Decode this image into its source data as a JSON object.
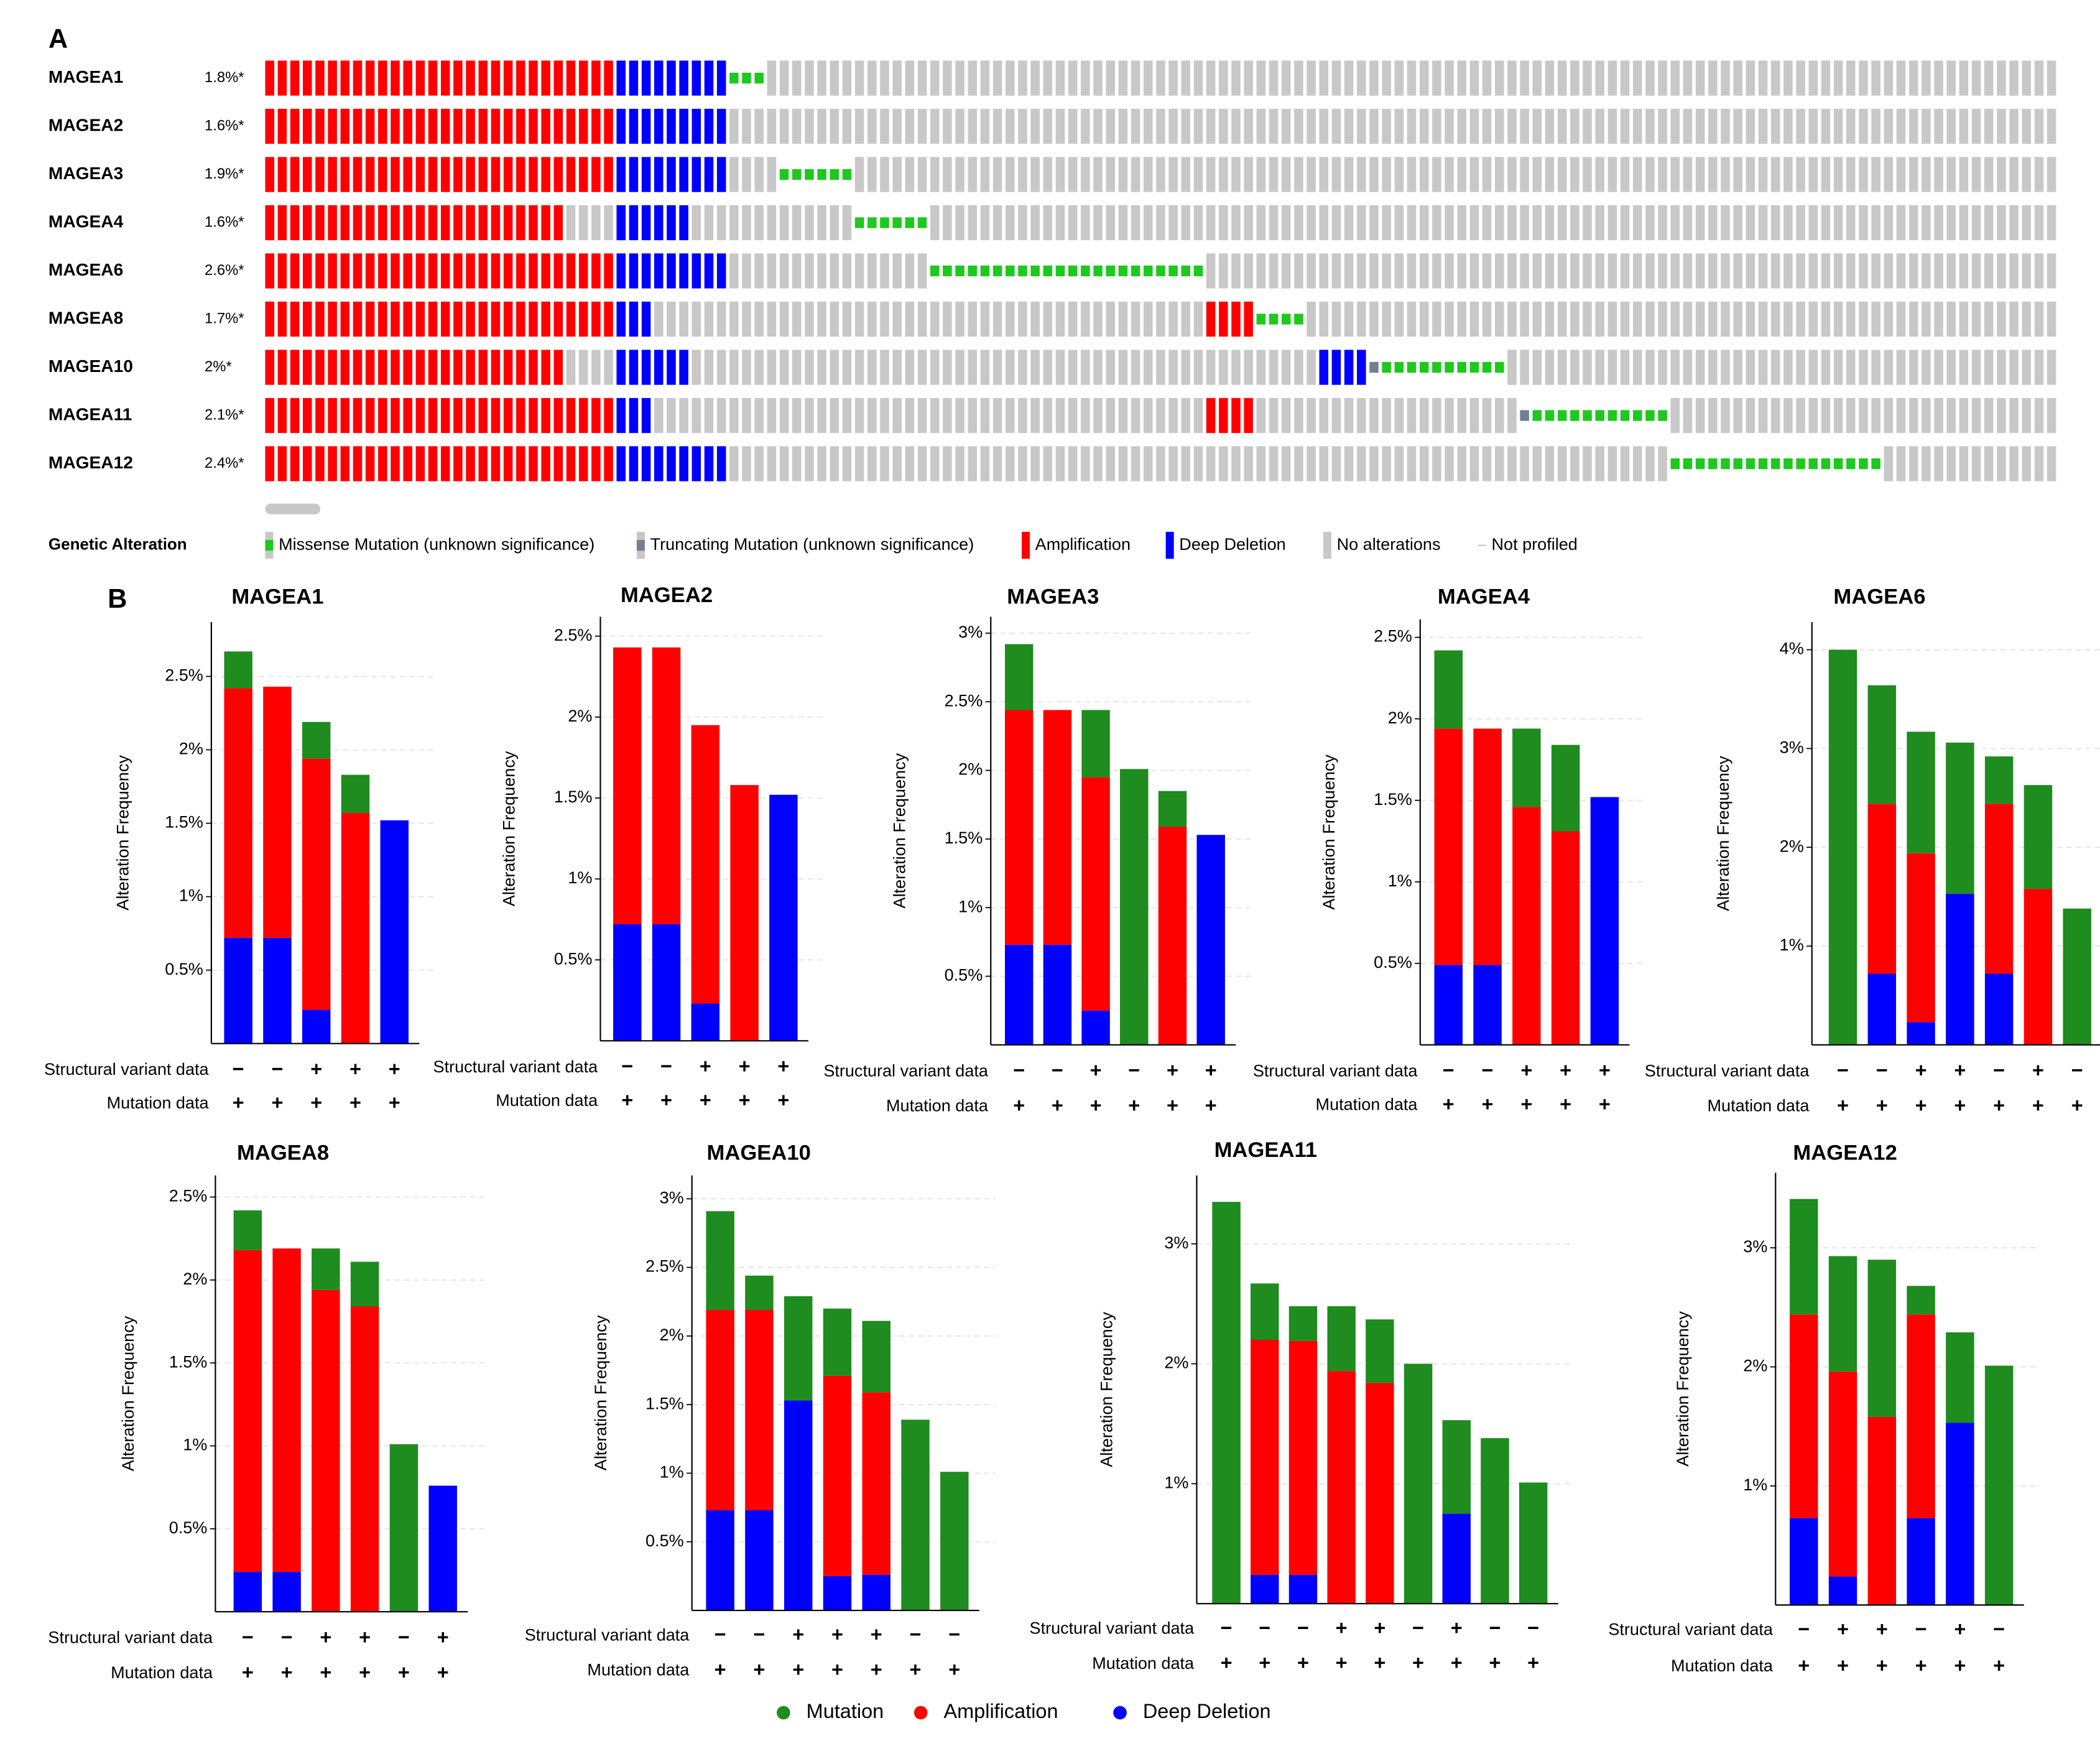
{
  "panel_labels": [
    "A",
    "B"
  ],
  "legend": {
    "series": [
      {
        "name": "Mutation",
        "color": "#1e8c1e"
      },
      {
        "name": "Amplification",
        "color": "#ff0000"
      },
      {
        "name": "Deep Deletion",
        "color": "#0000ff"
      }
    ]
  },
  "chart_data": [
    {
      "type": "oncoprint",
      "genes": [
        "MAGEA1",
        "MAGEA2",
        "MAGEA3",
        "MAGEA4",
        "MAGEA6",
        "MAGEA8",
        "MAGEA10",
        "MAGEA11",
        "MAGEA12"
      ],
      "percentages": [
        "1.8%*",
        "1.6%*",
        "1.9%*",
        "1.6%*",
        "2.6%*",
        "1.7%*",
        "2%*",
        "2.1%*",
        "2.4%*"
      ],
      "rows": [
        [
          [
            2,
            28
          ],
          [
            3,
            9
          ],
          [
            0,
            3
          ],
          [
            4,
            103
          ]
        ],
        [
          [
            2,
            28
          ],
          [
            3,
            9
          ],
          [
            4,
            106
          ]
        ],
        [
          [
            2,
            28
          ],
          [
            3,
            9
          ],
          [
            4,
            4
          ],
          [
            0,
            6
          ],
          [
            4,
            96
          ]
        ],
        [
          [
            2,
            24
          ],
          [
            4,
            4
          ],
          [
            3,
            6
          ],
          [
            4,
            13
          ],
          [
            0,
            6
          ],
          [
            4,
            90
          ]
        ],
        [
          [
            2,
            28
          ],
          [
            3,
            9
          ],
          [
            4,
            16
          ],
          [
            0,
            22
          ],
          [
            4,
            68
          ]
        ],
        [
          [
            2,
            28
          ],
          [
            3,
            3
          ],
          [
            4,
            44
          ],
          [
            2,
            4
          ],
          [
            0,
            4
          ],
          [
            4,
            60
          ]
        ],
        [
          [
            2,
            24
          ],
          [
            4,
            4
          ],
          [
            3,
            6
          ],
          [
            4,
            50
          ],
          [
            3,
            4
          ],
          [
            1,
            1
          ],
          [
            0,
            10
          ],
          [
            4,
            44
          ]
        ],
        [
          [
            2,
            28
          ],
          [
            3,
            3
          ],
          [
            4,
            44
          ],
          [
            2,
            4
          ],
          [
            4,
            21
          ],
          [
            1,
            1
          ],
          [
            0,
            11
          ],
          [
            4,
            31
          ]
        ],
        [
          [
            2,
            28
          ],
          [
            3,
            9
          ],
          [
            4,
            75
          ],
          [
            0,
            17
          ],
          [
            4,
            14
          ]
        ]
      ],
      "legend_title": "Genetic Alteration",
      "legend": [
        "Missense Mutation (unknown significance)",
        "Truncating Mutation (unknown significance)",
        "Amplification",
        "Deep Deletion",
        "No alterations",
        "Not profiled"
      ],
      "colors": [
        "#1ec81e",
        "#708090",
        "#ff0000",
        "#0000ff",
        "#c8c8c8",
        "#c8c8c8"
      ]
    },
    {
      "type": "bar",
      "stacked": true,
      "title": "MAGEA1",
      "ylabel": "Alteration Frequency",
      "ylim": [
        0,
        2.87
      ],
      "yticks": [
        {
          "value": 0.5,
          "label": "0.5%"
        },
        {
          "value": 1,
          "label": "1%"
        },
        {
          "value": 1.5,
          "label": "1.5%"
        },
        {
          "value": 2,
          "label": "2%"
        },
        {
          "value": 2.5,
          "label": "2.5%"
        }
      ],
      "grid": true,
      "series": [
        {
          "values": [
            0.25,
            0,
            0.25,
            0.26,
            0
          ]
        },
        {
          "values": [
            1.7,
            1.71,
            1.71,
            1.57,
            0
          ]
        },
        {
          "values": [
            0.72,
            0.72,
            0.23,
            0,
            1.52
          ]
        }
      ],
      "row_labels": [
        "Structural variant data",
        "Mutation data"
      ],
      "structural_variant": [
        "−",
        "−",
        "+",
        "+",
        "+"
      ],
      "mutation": [
        "+",
        "+",
        "+",
        "+",
        "+"
      ]
    },
    {
      "type": "bar",
      "stacked": true,
      "title": "MAGEA2",
      "ylabel": "Alteration Frequency",
      "ylim": [
        0,
        2.62
      ],
      "yticks": [
        {
          "value": 0.5,
          "label": "0.5%"
        },
        {
          "value": 1,
          "label": "1%"
        },
        {
          "value": 1.5,
          "label": "1.5%"
        },
        {
          "value": 2,
          "label": "2%"
        },
        {
          "value": 2.5,
          "label": "2.5%"
        }
      ],
      "grid": true,
      "series": [
        {
          "values": [
            0,
            0,
            0,
            0,
            0
          ]
        },
        {
          "values": [
            1.71,
            1.71,
            1.72,
            1.58,
            0
          ]
        },
        {
          "values": [
            0.72,
            0.72,
            0.23,
            0,
            1.52
          ]
        }
      ],
      "row_labels": [
        "Structural variant data",
        "Mutation data"
      ],
      "structural_variant": [
        "−",
        "−",
        "+",
        "+",
        "+"
      ],
      "mutation": [
        "+",
        "+",
        "+",
        "+",
        "+"
      ]
    },
    {
      "type": "bar",
      "stacked": true,
      "title": "MAGEA3",
      "ylabel": "Alteration Frequency",
      "ylim": [
        0,
        3.12
      ],
      "yticks": [
        {
          "value": 0.5,
          "label": "0.5%"
        },
        {
          "value": 1,
          "label": "1%"
        },
        {
          "value": 1.5,
          "label": "1.5%"
        },
        {
          "value": 2,
          "label": "2%"
        },
        {
          "value": 2.5,
          "label": "2.5%"
        },
        {
          "value": 3,
          "label": "3%"
        }
      ],
      "grid": true,
      "series": [
        {
          "values": [
            0.48,
            0,
            0.49,
            2.01,
            0.26,
            0
          ]
        },
        {
          "values": [
            1.71,
            1.71,
            1.7,
            0,
            1.59,
            0
          ]
        },
        {
          "values": [
            0.73,
            0.73,
            0.25,
            0,
            0,
            1.53
          ]
        }
      ],
      "row_labels": [
        "Structural variant data",
        "Mutation data"
      ],
      "structural_variant": [
        "−",
        "−",
        "+",
        "−",
        "+",
        "+"
      ],
      "mutation": [
        "+",
        "+",
        "+",
        "+",
        "+",
        "+"
      ]
    },
    {
      "type": "bar",
      "stacked": true,
      "title": "MAGEA4",
      "ylabel": "Alteration Frequency",
      "ylim": [
        0,
        2.61
      ],
      "yticks": [
        {
          "value": 0.5,
          "label": "0.5%"
        },
        {
          "value": 1,
          "label": "1%"
        },
        {
          "value": 1.5,
          "label": "1.5%"
        },
        {
          "value": 2,
          "label": "2%"
        },
        {
          "value": 2.5,
          "label": "2.5%"
        }
      ],
      "grid": true,
      "series": [
        {
          "values": [
            0.48,
            0,
            0.48,
            0.53,
            0
          ]
        },
        {
          "values": [
            1.45,
            1.45,
            1.46,
            1.31,
            0
          ]
        },
        {
          "values": [
            0.49,
            0.49,
            0,
            0,
            1.52
          ]
        }
      ],
      "row_labels": [
        "Structural variant data",
        "Mutation data"
      ],
      "structural_variant": [
        "−",
        "−",
        "+",
        "+",
        "+"
      ],
      "mutation": [
        "+",
        "+",
        "+",
        "+",
        "+"
      ]
    },
    {
      "type": "bar",
      "stacked": true,
      "title": "MAGEA6",
      "ylabel": "Alteration Frequency",
      "ylim": [
        0,
        4.28
      ],
      "yticks": [
        {
          "value": 1,
          "label": "1%"
        },
        {
          "value": 2,
          "label": "2%"
        },
        {
          "value": 3,
          "label": "3%"
        },
        {
          "value": 4,
          "label": "4%"
        }
      ],
      "grid": true,
      "series": [
        {
          "values": [
            4.0,
            1.2,
            1.23,
            1.53,
            0.48,
            1.05,
            1.38
          ]
        },
        {
          "values": [
            0,
            1.72,
            1.71,
            0,
            1.72,
            1.58,
            0
          ]
        },
        {
          "values": [
            0,
            0.72,
            0.23,
            1.53,
            0.72,
            0,
            0
          ]
        }
      ],
      "row_labels": [
        "Structural variant data",
        "Mutation data"
      ],
      "structural_variant": [
        "−",
        "−",
        "+",
        "+",
        "−",
        "+",
        "−"
      ],
      "mutation": [
        "+",
        "+",
        "+",
        "+",
        "+",
        "+",
        "+"
      ]
    },
    {
      "type": "bar",
      "stacked": true,
      "title": "MAGEA8",
      "ylabel": "Alteration Frequency",
      "ylim": [
        0,
        2.63
      ],
      "yticks": [
        {
          "value": 0.5,
          "label": "0.5%"
        },
        {
          "value": 1,
          "label": "1%"
        },
        {
          "value": 1.5,
          "label": "1.5%"
        },
        {
          "value": 2,
          "label": "2%"
        },
        {
          "value": 2.5,
          "label": "2.5%"
        }
      ],
      "grid": true,
      "series": [
        {
          "values": [
            0.24,
            0,
            0.25,
            0.27,
            1.01,
            0
          ]
        },
        {
          "values": [
            1.94,
            1.95,
            1.94,
            1.84,
            0,
            0
          ]
        },
        {
          "values": [
            0.24,
            0.24,
            0,
            0,
            0,
            0.76
          ]
        }
      ],
      "row_labels": [
        "Structural variant data",
        "Mutation data"
      ],
      "structural_variant": [
        "−",
        "−",
        "+",
        "+",
        "−",
        "+"
      ],
      "mutation": [
        "+",
        "+",
        "+",
        "+",
        "+",
        "+"
      ]
    },
    {
      "type": "bar",
      "stacked": true,
      "title": "MAGEA10",
      "ylabel": "Alteration Frequency",
      "ylim": [
        0,
        3.17
      ],
      "yticks": [
        {
          "value": 0.5,
          "label": "0.5%"
        },
        {
          "value": 1,
          "label": "1%"
        },
        {
          "value": 1.5,
          "label": "1.5%"
        },
        {
          "value": 2,
          "label": "2%"
        },
        {
          "value": 2.5,
          "label": "2.5%"
        },
        {
          "value": 3,
          "label": "3%"
        }
      ],
      "grid": true,
      "series": [
        {
          "values": [
            0.72,
            0.25,
            0.76,
            0.49,
            0.52,
            1.39,
            1.01
          ]
        },
        {
          "values": [
            1.46,
            1.46,
            0,
            1.46,
            1.33,
            0,
            0
          ]
        },
        {
          "values": [
            0.73,
            0.73,
            1.53,
            0.25,
            0.26,
            0,
            0
          ]
        }
      ],
      "row_labels": [
        "Structural variant data",
        "Mutation data"
      ],
      "structural_variant": [
        "−",
        "−",
        "+",
        "+",
        "+",
        "−",
        "−"
      ],
      "mutation": [
        "+",
        "+",
        "+",
        "+",
        "+",
        "+",
        "+"
      ]
    },
    {
      "type": "bar",
      "stacked": true,
      "title": "MAGEA11",
      "ylabel": "Alteration Frequency",
      "ylim": [
        0,
        3.57
      ],
      "yticks": [
        {
          "value": 1,
          "label": "1%"
        },
        {
          "value": 2,
          "label": "2%"
        },
        {
          "value": 3,
          "label": "3%"
        }
      ],
      "grid": true,
      "series": [
        {
          "values": [
            3.35,
            0.47,
            0.29,
            0.54,
            0.53,
            2.0,
            0.78,
            1.38,
            1.01
          ]
        },
        {
          "values": [
            0,
            1.96,
            1.95,
            1.94,
            1.84,
            0,
            0,
            0,
            0
          ]
        },
        {
          "values": [
            0,
            0.24,
            0.24,
            0,
            0,
            0,
            0.75,
            0,
            0
          ]
        }
      ],
      "row_labels": [
        "Structural variant data",
        "Mutation data"
      ],
      "structural_variant": [
        "−",
        "−",
        "−",
        "+",
        "+",
        "−",
        "+",
        "−",
        "−"
      ],
      "mutation": [
        "+",
        "+",
        "+",
        "+",
        "+",
        "+",
        "+",
        "+",
        "+"
      ]
    },
    {
      "type": "bar",
      "stacked": true,
      "title": "MAGEA12",
      "ylabel": "Alteration Frequency",
      "ylim": [
        0,
        3.63
      ],
      "yticks": [
        {
          "value": 1,
          "label": "1%"
        },
        {
          "value": 2,
          "label": "2%"
        },
        {
          "value": 3,
          "label": "3%"
        }
      ],
      "grid": true,
      "series": [
        {
          "values": [
            0.97,
            0.97,
            1.32,
            0.24,
            0.76,
            2.01
          ]
        },
        {
          "values": [
            1.71,
            1.72,
            1.58,
            1.71,
            0,
            0
          ]
        },
        {
          "values": [
            0.73,
            0.24,
            0,
            0.73,
            1.53,
            0
          ]
        }
      ],
      "row_labels": [
        "Structural variant data",
        "Mutation data"
      ],
      "structural_variant": [
        "−",
        "+",
        "+",
        "−",
        "+",
        "−"
      ],
      "mutation": [
        "+",
        "+",
        "+",
        "+",
        "+",
        "+"
      ]
    }
  ]
}
